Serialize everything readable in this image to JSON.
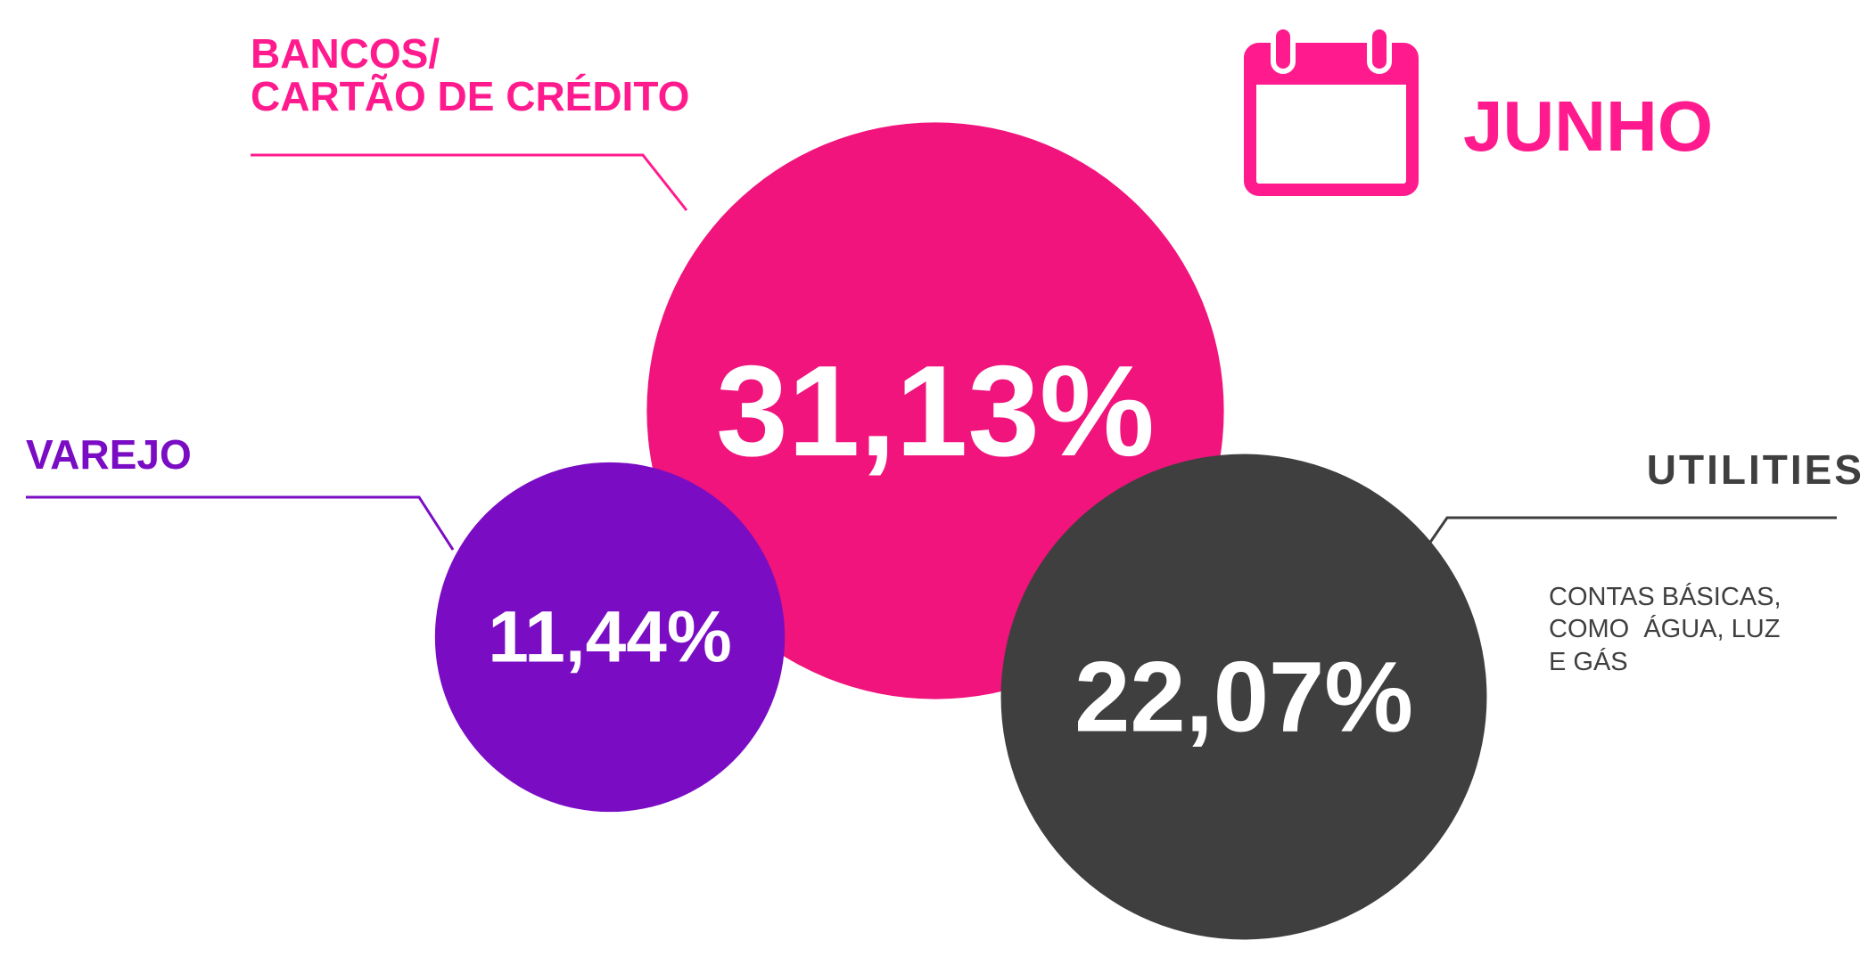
{
  "chart_data": {
    "type": "bubble",
    "title": "JUNHO",
    "categories": [
      "BANCOS/\nCARTÃO DE CRÉDITO",
      "VAREJO",
      "UTILITIES"
    ],
    "values": [
      31.13,
      11.44,
      22.07
    ],
    "value_labels": [
      "31,13%",
      "11,44%",
      "22,07%"
    ],
    "colors": [
      "#f0147c",
      "#7a0cc4",
      "#3f3f3f"
    ],
    "label_colors": [
      "#ff1b8d",
      "#7a0cc4",
      "#3f3f3f"
    ],
    "annotation": "CONTAS BÁSICAS,\nCOMO  ÁGUA, LUZ\nE GÁS"
  }
}
